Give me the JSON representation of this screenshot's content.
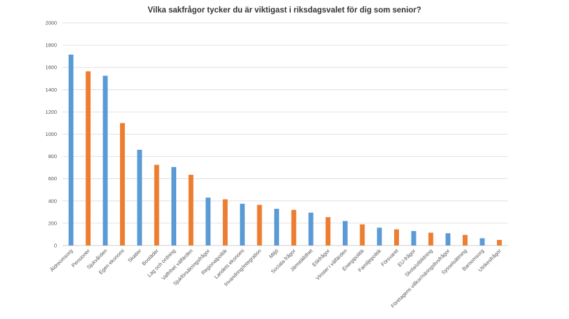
{
  "chart_data": {
    "type": "bar",
    "title": "Vilka sakfrågor tycker du är viktigast i riksdagsvalet för dig som senior?",
    "xlabel": "",
    "ylabel": "",
    "ylim": [
      0,
      2000
    ],
    "yticks": [
      0,
      200,
      400,
      600,
      800,
      1000,
      1200,
      1400,
      1600,
      1800,
      2000
    ],
    "grid": true,
    "legend": "none",
    "colors": [
      "#5b9bd5",
      "#ed7d31"
    ],
    "categories": [
      "Äldreomsorg",
      "Pensioner",
      "Sjukvården",
      "Egen ekonomi",
      "Skatter",
      "Bostäder",
      "Lag och ordning",
      "Valfrihet välfärden",
      "Sjukförsäkringsfrågor",
      "Regionalpolitik",
      "Landets ekonomi",
      "Invandring/integration",
      "Miljö",
      "Sociala frågor",
      "Jämställdhet",
      "Etikfrågor",
      "Vinster i välfärden",
      "Energipolitik",
      "Familjepolitik",
      "Försvaret",
      "EU-frågor",
      "Skola/utbildning",
      "Företagens villkor/näringslivsfrågor",
      "Sysselsättning",
      "Barnomsorg",
      "Utrikesfrågor"
    ],
    "values": [
      1715,
      1565,
      1525,
      1100,
      860,
      725,
      705,
      635,
      430,
      415,
      375,
      365,
      330,
      320,
      295,
      255,
      220,
      190,
      160,
      145,
      130,
      115,
      110,
      95,
      65,
      50
    ]
  }
}
